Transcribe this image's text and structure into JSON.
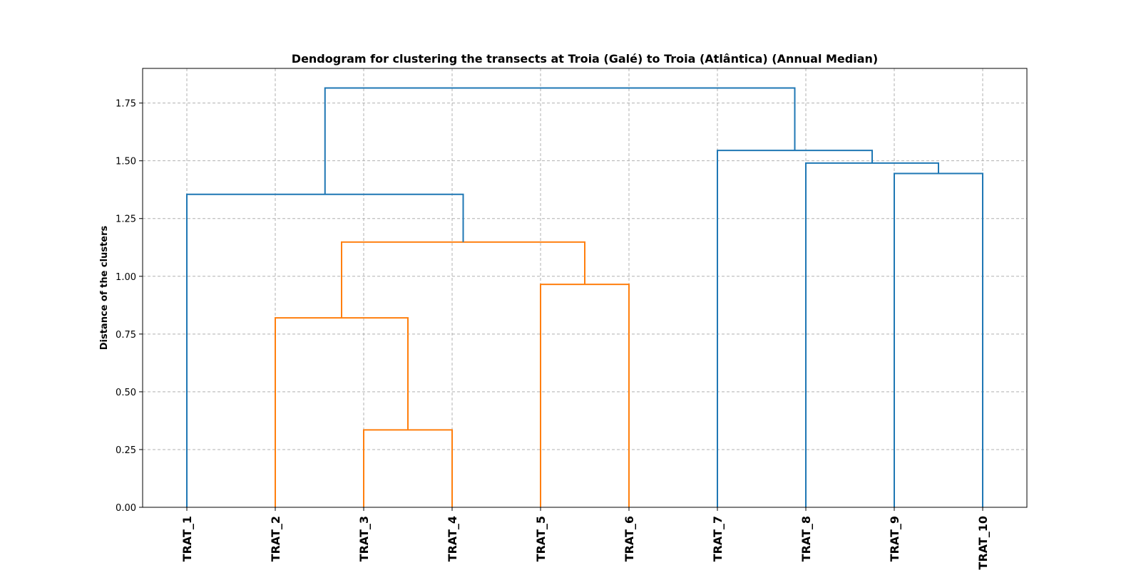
{
  "chart_data": {
    "type": "dendrogram",
    "title": "Dendogram for clustering the transects at Troia (Galé) to Troia (Atlântica) (Annual Median)",
    "xlabel": "",
    "ylabel": "Distance of the clusters",
    "ylim": [
      0,
      1.9
    ],
    "yticks": [
      0.0,
      0.25,
      0.5,
      0.75,
      1.0,
      1.25,
      1.5,
      1.75
    ],
    "ytick_labels": [
      "0.00",
      "0.25",
      "0.50",
      "0.75",
      "1.00",
      "1.25",
      "1.50",
      "1.75"
    ],
    "grid": true,
    "leaves": [
      "TRAT_1",
      "TRAT_2",
      "TRAT_3",
      "TRAT_4",
      "TRAT_5",
      "TRAT_6",
      "TRAT_7",
      "TRAT_8",
      "TRAT_9",
      "TRAT_10"
    ],
    "colors": {
      "cluster": "#ff7f0e",
      "above_threshold": "#1f77b4"
    },
    "merges": [
      {
        "left": "TRAT_3",
        "right": "TRAT_4",
        "height": 0.335,
        "color": "cluster"
      },
      {
        "left": "TRAT_2",
        "right": "m0",
        "height": 0.82,
        "color": "cluster"
      },
      {
        "left": "TRAT_5",
        "right": "TRAT_6",
        "height": 0.965,
        "color": "cluster"
      },
      {
        "left": "m1",
        "right": "m2",
        "height": 1.148,
        "color": "cluster"
      },
      {
        "left": "TRAT_1",
        "right": "m3",
        "height": 1.355,
        "color": "above_threshold"
      },
      {
        "left": "TRAT_9",
        "right": "TRAT_10",
        "height": 1.445,
        "color": "above_threshold"
      },
      {
        "left": "TRAT_8",
        "right": "m5",
        "height": 1.49,
        "color": "above_threshold"
      },
      {
        "left": "TRAT_7",
        "right": "m6",
        "height": 1.545,
        "color": "above_threshold"
      },
      {
        "left": "m4",
        "right": "m7",
        "height": 1.815,
        "color": "above_threshold"
      }
    ]
  }
}
